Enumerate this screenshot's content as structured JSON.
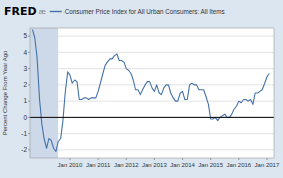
{
  "chart_data": {
    "type": "line",
    "ylabel": "Percent Change From Year Ago",
    "annotations": [
      "FRED",
      "æ"
    ],
    "legend": "top-left",
    "grid": true,
    "xlim": [
      2008.58,
      2017.25
    ],
    "ylim": [
      -2.5,
      5.5
    ],
    "yticks": [
      -2,
      -1,
      0,
      1,
      2,
      3,
      4,
      5
    ],
    "xticks": [
      {
        "value": 2010.0,
        "label": "Jan 2010"
      },
      {
        "value": 2011.0,
        "label": "Jan 2011"
      },
      {
        "value": 2012.0,
        "label": "Jan 2012"
      },
      {
        "value": 2013.0,
        "label": "Jan 2013"
      },
      {
        "value": 2014.0,
        "label": "Jan 2014"
      },
      {
        "value": 2015.0,
        "label": "Jan 2015"
      },
      {
        "value": 2016.0,
        "label": "Jan 2016"
      },
      {
        "value": 2017.0,
        "label": "Jan 2017"
      }
    ],
    "shaded_range": [
      2008.58,
      2009.58
    ],
    "hline": 0,
    "x": [
      2008.67,
      2008.75,
      2008.83,
      2008.92,
      2009.0,
      2009.08,
      2009.17,
      2009.25,
      2009.33,
      2009.42,
      2009.5,
      2009.58,
      2009.67,
      2009.75,
      2009.83,
      2009.92,
      2010.0,
      2010.08,
      2010.17,
      2010.25,
      2010.33,
      2010.42,
      2010.5,
      2010.58,
      2010.67,
      2010.75,
      2010.83,
      2010.92,
      2011.0,
      2011.08,
      2011.17,
      2011.25,
      2011.33,
      2011.42,
      2011.5,
      2011.58,
      2011.67,
      2011.75,
      2011.83,
      2011.92,
      2012.0,
      2012.08,
      2012.17,
      2012.25,
      2012.33,
      2012.42,
      2012.5,
      2012.58,
      2012.67,
      2012.75,
      2012.83,
      2012.92,
      2013.0,
      2013.08,
      2013.17,
      2013.25,
      2013.33,
      2013.42,
      2013.5,
      2013.58,
      2013.67,
      2013.75,
      2013.83,
      2013.92,
      2014.0,
      2014.08,
      2014.17,
      2014.25,
      2014.33,
      2014.42,
      2014.5,
      2014.58,
      2014.67,
      2014.75,
      2014.83,
      2014.92,
      2015.0,
      2015.08,
      2015.17,
      2015.25,
      2015.33,
      2015.42,
      2015.5,
      2015.58,
      2015.67,
      2015.75,
      2015.83,
      2015.92,
      2016.0,
      2016.08,
      2016.17,
      2016.25,
      2016.33,
      2016.42,
      2016.5,
      2016.58,
      2016.67,
      2016.75,
      2016.83,
      2016.92,
      2017.0,
      2017.08
    ],
    "series": [
      {
        "name": "Consumer Price Index for All Urban Consumers: All Items",
        "color": "#4472a8",
        "values": [
          5.4,
          4.9,
          3.7,
          1.1,
          -0.4,
          -1.3,
          -1.9,
          -1.3,
          -1.4,
          -1.9,
          -2.1,
          -1.5,
          -1.3,
          -0.2,
          1.5,
          2.8,
          2.6,
          2.1,
          2.3,
          2.2,
          1.1,
          1.1,
          1.2,
          1.2,
          1.1,
          1.2,
          1.2,
          1.2,
          1.6,
          2.1,
          2.7,
          3.2,
          3.4,
          3.6,
          3.6,
          3.8,
          3.9,
          3.5,
          3.5,
          3.4,
          3.0,
          2.9,
          2.7,
          2.3,
          1.7,
          1.7,
          1.4,
          1.7,
          2.0,
          2.2,
          2.2,
          1.8,
          1.6,
          2.0,
          1.5,
          1.4,
          1.8,
          2.0,
          2.0,
          1.5,
          1.2,
          1.0,
          1.0,
          1.5,
          1.6,
          1.1,
          1.1,
          2.0,
          2.1,
          2.0,
          2.0,
          1.7,
          1.7,
          1.7,
          1.3,
          0.8,
          -0.1,
          -0.1,
          0.0,
          -0.2,
          0.0,
          0.1,
          0.2,
          0.0,
          0.0,
          0.2,
          0.5,
          0.7,
          1.0,
          0.9,
          1.1,
          1.1,
          1.0,
          1.1,
          0.8,
          1.5,
          1.5,
          1.6,
          1.7,
          2.1,
          2.5,
          2.7
        ]
      }
    ]
  }
}
